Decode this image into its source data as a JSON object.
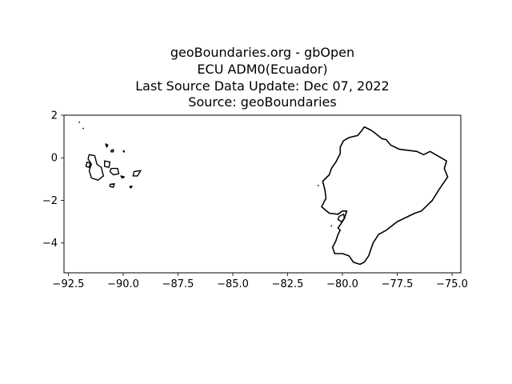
{
  "title_lines": [
    "geoBoundaries.org - gbOpen",
    "ECU ADM0(Ecuador)",
    "Last Source Data Update: Dec 07, 2022",
    "Source: geoBoundaries"
  ],
  "chart_data": {
    "type": "map",
    "xlim": [
      -92.7,
      -74.6
    ],
    "ylim": [
      -5.4,
      2.0
    ],
    "x_ticks": [
      -92.5,
      -90.0,
      -87.5,
      -85.0,
      -82.5,
      -80.0,
      -77.5,
      -75.0
    ],
    "x_tick_labels": [
      "−92.5",
      "−90.0",
      "−87.5",
      "−85.0",
      "−82.5",
      "−80.0",
      "−77.5",
      "−75.0"
    ],
    "y_ticks": [
      2,
      0,
      -2,
      -4
    ],
    "y_tick_labels": [
      "2",
      "0",
      "−2",
      "−4"
    ],
    "grid": false,
    "boundary_color": "#000000",
    "mainland": [
      [
        -79.0,
        1.45
      ],
      [
        -78.7,
        1.3
      ],
      [
        -78.5,
        1.15
      ],
      [
        -78.2,
        0.9
      ],
      [
        -78.0,
        0.85
      ],
      [
        -77.8,
        0.6
      ],
      [
        -77.4,
        0.4
      ],
      [
        -77.0,
        0.35
      ],
      [
        -76.6,
        0.3
      ],
      [
        -76.3,
        0.15
      ],
      [
        -76.0,
        0.3
      ],
      [
        -75.5,
        0.0
      ],
      [
        -75.25,
        -0.15
      ],
      [
        -75.35,
        -0.5
      ],
      [
        -75.2,
        -0.9
      ],
      [
        -75.6,
        -1.5
      ],
      [
        -75.9,
        -2.0
      ],
      [
        -76.4,
        -2.5
      ],
      [
        -76.7,
        -2.6
      ],
      [
        -77.5,
        -3.0
      ],
      [
        -78.0,
        -3.4
      ],
      [
        -78.35,
        -3.6
      ],
      [
        -78.6,
        -4.0
      ],
      [
        -78.7,
        -4.3
      ],
      [
        -78.8,
        -4.6
      ],
      [
        -79.0,
        -4.9
      ],
      [
        -79.2,
        -5.0
      ],
      [
        -79.5,
        -4.9
      ],
      [
        -79.7,
        -4.6
      ],
      [
        -80.0,
        -4.5
      ],
      [
        -80.35,
        -4.5
      ],
      [
        -80.45,
        -4.2
      ],
      [
        -80.3,
        -3.9
      ],
      [
        -80.2,
        -3.6
      ],
      [
        -80.1,
        -3.4
      ],
      [
        -80.2,
        -3.3
      ],
      [
        -80.0,
        -3.0
      ],
      [
        -79.9,
        -2.8
      ],
      [
        -79.8,
        -2.5
      ],
      [
        -80.0,
        -2.5
      ],
      [
        -80.2,
        -2.65
      ],
      [
        -80.6,
        -2.6
      ],
      [
        -80.95,
        -2.3
      ],
      [
        -80.85,
        -2.1
      ],
      [
        -80.75,
        -1.9
      ],
      [
        -80.8,
        -1.5
      ],
      [
        -80.9,
        -1.1
      ],
      [
        -80.6,
        -0.8
      ],
      [
        -80.5,
        -0.5
      ],
      [
        -80.3,
        -0.2
      ],
      [
        -80.1,
        0.2
      ],
      [
        -80.1,
        0.5
      ],
      [
        -79.95,
        0.8
      ],
      [
        -79.7,
        0.95
      ],
      [
        -79.3,
        1.05
      ],
      [
        -79.1,
        1.3
      ],
      [
        -79.0,
        1.45
      ]
    ],
    "puna_island": [
      [
        -80.15,
        -2.75
      ],
      [
        -79.95,
        -2.65
      ],
      [
        -79.9,
        -2.85
      ],
      [
        -80.05,
        -3.0
      ],
      [
        -80.2,
        -2.9
      ],
      [
        -80.15,
        -2.75
      ]
    ],
    "galapagos_islands": [
      [
        [
          -91.55,
          0.15
        ],
        [
          -91.3,
          0.1
        ],
        [
          -91.2,
          -0.3
        ],
        [
          -91.0,
          -0.45
        ],
        [
          -90.9,
          -0.85
        ],
        [
          -91.15,
          -1.05
        ],
        [
          -91.45,
          -0.95
        ],
        [
          -91.55,
          -0.6
        ],
        [
          -91.45,
          -0.3
        ],
        [
          -91.6,
          -0.05
        ],
        [
          -91.55,
          0.15
        ]
      ],
      [
        [
          -91.65,
          -0.2
        ],
        [
          -91.5,
          -0.25
        ],
        [
          -91.55,
          -0.45
        ],
        [
          -91.7,
          -0.4
        ],
        [
          -91.65,
          -0.2
        ]
      ],
      [
        [
          -90.85,
          -0.15
        ],
        [
          -90.6,
          -0.2
        ],
        [
          -90.65,
          -0.45
        ],
        [
          -90.85,
          -0.4
        ],
        [
          -90.85,
          -0.15
        ]
      ],
      [
        [
          -90.55,
          -0.5
        ],
        [
          -90.25,
          -0.5
        ],
        [
          -90.2,
          -0.75
        ],
        [
          -90.45,
          -0.8
        ],
        [
          -90.6,
          -0.65
        ],
        [
          -90.55,
          -0.5
        ]
      ],
      [
        [
          -89.5,
          -0.65
        ],
        [
          -89.2,
          -0.6
        ],
        [
          -89.35,
          -0.85
        ],
        [
          -89.55,
          -0.85
        ],
        [
          -89.5,
          -0.65
        ]
      ],
      [
        [
          -90.55,
          0.35
        ],
        [
          -90.45,
          0.38
        ],
        [
          -90.45,
          0.28
        ],
        [
          -90.55,
          0.28
        ],
        [
          -90.55,
          0.35
        ]
      ],
      [
        [
          -90.8,
          0.65
        ],
        [
          -90.7,
          0.6
        ],
        [
          -90.75,
          0.5
        ],
        [
          -90.8,
          0.65
        ]
      ],
      [
        [
          -90.6,
          -1.25
        ],
        [
          -90.4,
          -1.22
        ],
        [
          -90.45,
          -1.38
        ],
        [
          -90.6,
          -1.35
        ],
        [
          -90.6,
          -1.25
        ]
      ],
      [
        [
          -90.1,
          -0.85
        ],
        [
          -89.95,
          -0.9
        ],
        [
          -90.05,
          -0.95
        ],
        [
          -90.1,
          -0.85
        ]
      ],
      [
        [
          -89.7,
          -1.35
        ],
        [
          -89.6,
          -1.33
        ],
        [
          -89.65,
          -1.42
        ],
        [
          -89.7,
          -1.35
        ]
      ],
      [
        [
          -90.0,
          0.32
        ],
        [
          -89.95,
          0.32
        ],
        [
          -89.97,
          0.27
        ],
        [
          -90.0,
          0.32
        ]
      ]
    ],
    "small_islets": [
      [
        -92.0,
        1.67
      ],
      [
        -91.82,
        1.38
      ],
      [
        -81.1,
        -1.3
      ],
      [
        -80.5,
        -3.2
      ]
    ]
  }
}
